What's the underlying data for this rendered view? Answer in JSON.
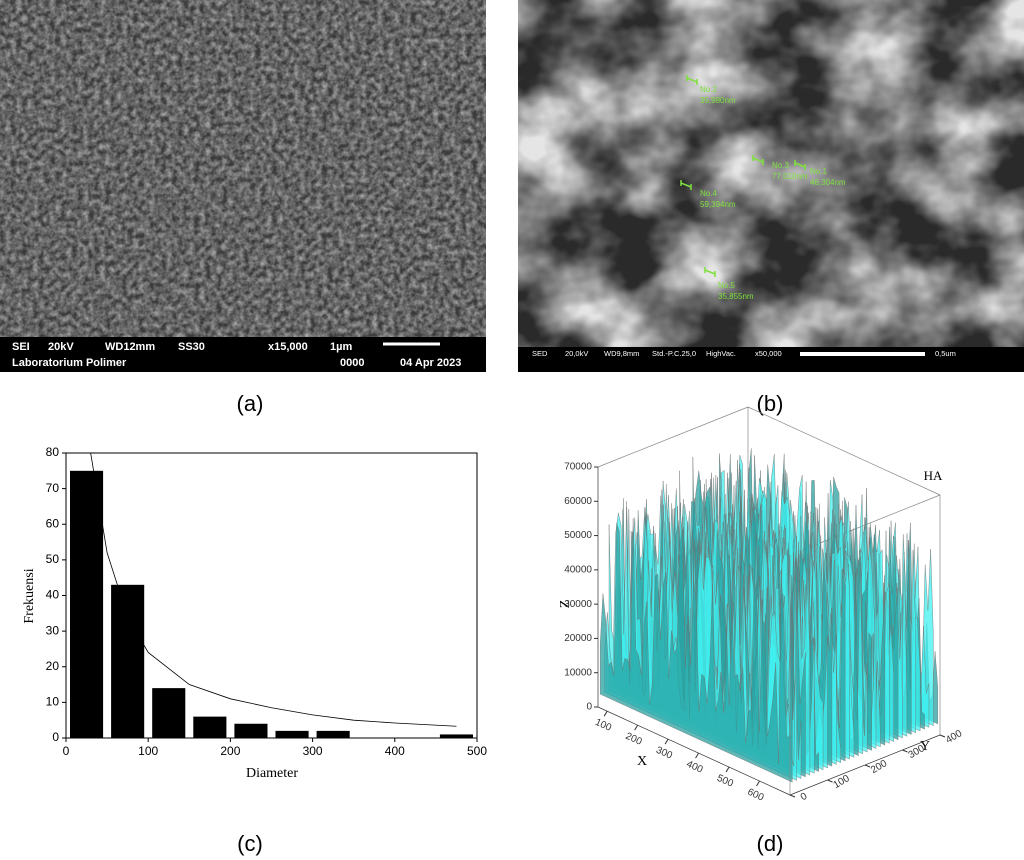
{
  "captions": [
    "(a)",
    "(b)",
    "(c)",
    "(d)"
  ],
  "sem_a": {
    "info_top": [
      "SEI",
      "20kV",
      "WD12mm",
      "SS30",
      "x15,000",
      "1µm"
    ],
    "info_bottom": [
      "Laboratorium Polimer",
      "0000",
      "04 Apr 2023"
    ]
  },
  "sem_b": {
    "info": [
      "SED",
      "20,0kV",
      "WD9,8mm",
      "Std.-P.C.25,0",
      "HighVac.",
      "x50,000",
      "0,5um"
    ],
    "measurements": [
      {
        "label": "No.2",
        "size": "35,980nm"
      },
      {
        "label": "No.3",
        "size": "77,010nm"
      },
      {
        "label": "No.1",
        "size": "46,304nm"
      },
      {
        "label": "No.4",
        "size": "59,394nm"
      },
      {
        "label": "No.5",
        "size": "35,855nm"
      }
    ]
  },
  "chart_data": [
    {
      "type": "histogram",
      "xlabel": "Diameter",
      "ylabel": "Frekuensi",
      "bins": [
        0,
        50,
        100,
        150,
        200,
        250,
        300,
        350,
        400,
        450,
        500
      ],
      "values": [
        75,
        43,
        14,
        6,
        4,
        2,
        2,
        0,
        0,
        1
      ],
      "color": "#000000",
      "fit": {
        "x": [
          30,
          50,
          75,
          100,
          150,
          200,
          250,
          300,
          350,
          400,
          475
        ],
        "values": [
          80,
          52,
          34,
          24,
          15,
          11,
          8.5,
          6.5,
          5,
          4.2,
          3.3
        ]
      },
      "xlim": [
        0,
        500
      ],
      "xticks": [
        0,
        100,
        200,
        300,
        400,
        500
      ],
      "ylim": [
        0,
        80
      ],
      "yticks": [
        0,
        10,
        20,
        30,
        40,
        50,
        60,
        70,
        80
      ]
    },
    {
      "type": "surface3d",
      "title": "HA",
      "xlabel": "X",
      "ylabel": "Y",
      "zlabel": "Z",
      "color": "#40f0f0",
      "xlim": [
        70,
        700
      ],
      "xticks": [
        100,
        200,
        300,
        400,
        500,
        600
      ],
      "ylim": [
        0,
        400
      ],
      "yticks": [
        0,
        100,
        200,
        300,
        400
      ],
      "zlim": [
        0,
        70000
      ],
      "zticks": [
        0,
        10000,
        20000,
        30000,
        40000,
        50000,
        60000,
        70000
      ]
    }
  ]
}
